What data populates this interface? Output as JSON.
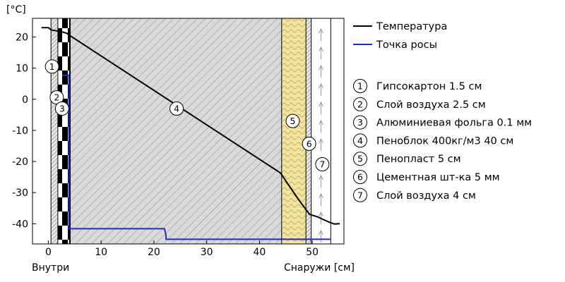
{
  "chart_data": {
    "type": "line",
    "ylabel": "[°C]",
    "xlabel": "Снаружи [см]",
    "x_left_caption": "Внутри",
    "xlim": [
      -3,
      56
    ],
    "ylim": [
      -46.5,
      26
    ],
    "xticks": [
      0,
      10,
      20,
      30,
      40,
      50
    ],
    "yticks": [
      20,
      10,
      0,
      -10,
      -20,
      -30,
      -40
    ],
    "grid": false,
    "legend_position": "right",
    "series": [
      {
        "name": "Температура",
        "color": "#000000",
        "points": [
          [
            -1.3,
            23
          ],
          [
            0,
            23
          ],
          [
            0.5,
            22.3
          ],
          [
            1.5,
            22
          ],
          [
            2.5,
            21.7
          ],
          [
            3.5,
            21.2
          ],
          [
            4.5,
            20
          ],
          [
            44,
            -23.7
          ],
          [
            45,
            -26.3
          ],
          [
            47.5,
            -32.5
          ],
          [
            49.5,
            -37
          ],
          [
            51,
            -37.8
          ],
          [
            53.2,
            -39.5
          ],
          [
            54.2,
            -40.1
          ],
          [
            55.2,
            -40
          ]
        ]
      },
      {
        "name": "Точка росы",
        "color": "#1a2fc2",
        "points": [
          [
            2.6,
            7.7
          ],
          [
            3.9,
            7.7
          ],
          [
            3.9,
            -41.6
          ],
          [
            22,
            -41.6
          ],
          [
            22.3,
            -43.8
          ],
          [
            22.3,
            -45
          ],
          [
            53.4,
            -45
          ]
        ]
      }
    ],
    "layers": [
      {
        "id": "1",
        "label": "Гипсокартон 1.5 см",
        "x0": 0.5,
        "x1": 1.8,
        "pattern": "hatch-dense"
      },
      {
        "id": "2",
        "label": "Слой воздуха 2.5 см",
        "x0": 1.8,
        "x1": 4.0,
        "pattern": "checker"
      },
      {
        "id": "3",
        "label": "Алюминиевая фольга 0.1 мм",
        "x0": 4.0,
        "x1": 4.15,
        "pattern": "solid"
      },
      {
        "id": "4",
        "label": "Пеноблок 400кг/м3 40 см",
        "x0": 4.15,
        "x1": 44.2,
        "pattern": "hatch"
      },
      {
        "id": "5",
        "label": "Пенопласт 5 см",
        "x0": 44.2,
        "x1": 48.8,
        "pattern": "insulation"
      },
      {
        "id": "6",
        "label": "Цементная шт-ка 5 мм",
        "x0": 48.8,
        "x1": 49.8,
        "pattern": "hatch-dense"
      },
      {
        "id": "7",
        "label": "Слой воздуха 4 см",
        "x0": 49.8,
        "x1": 53.5,
        "pattern": "air-arrows"
      }
    ],
    "layer_markers": [
      {
        "id": "1",
        "x": 0.7,
        "y": 10.5
      },
      {
        "id": "2",
        "x": 1.6,
        "y": 0.6
      },
      {
        "id": "3",
        "x": 2.6,
        "y": -3.0
      },
      {
        "id": "4",
        "x": 24.3,
        "y": -3.0
      },
      {
        "id": "5",
        "x": 46.3,
        "y": -7.0
      },
      {
        "id": "6",
        "x": 49.4,
        "y": -14.3
      },
      {
        "id": "7",
        "x": 51.9,
        "y": -20.9
      }
    ]
  }
}
